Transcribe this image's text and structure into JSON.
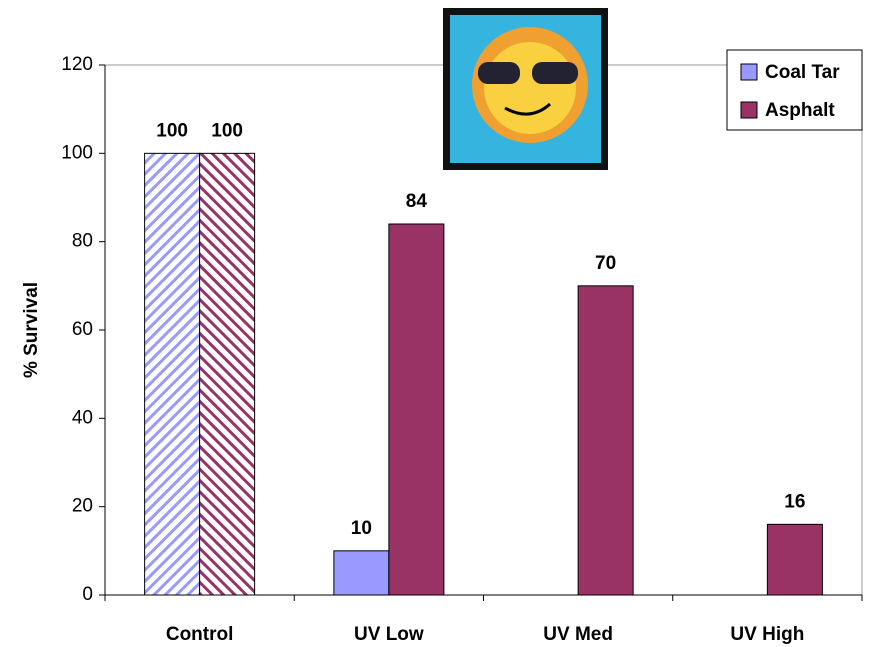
{
  "chart_data": {
    "type": "bar",
    "categories": [
      "Control",
      "UV Low",
      "UV Med",
      "UV High"
    ],
    "series": [
      {
        "name": "Coal Tar",
        "color": "#9999ff",
        "values": [
          100,
          10,
          0,
          0
        ],
        "value_labels": [
          "100",
          "10",
          null,
          null
        ]
      },
      {
        "name": "Asphalt",
        "color": "#993366",
        "values": [
          100,
          84,
          70,
          16
        ]
      }
    ],
    "y_label": "% Survival",
    "ylim": [
      0,
      120
    ],
    "yticks": [
      0,
      20,
      40,
      60,
      80,
      100,
      120
    ],
    "grid": false,
    "legend": "top-right",
    "hatch_categories": [
      0
    ]
  }
}
